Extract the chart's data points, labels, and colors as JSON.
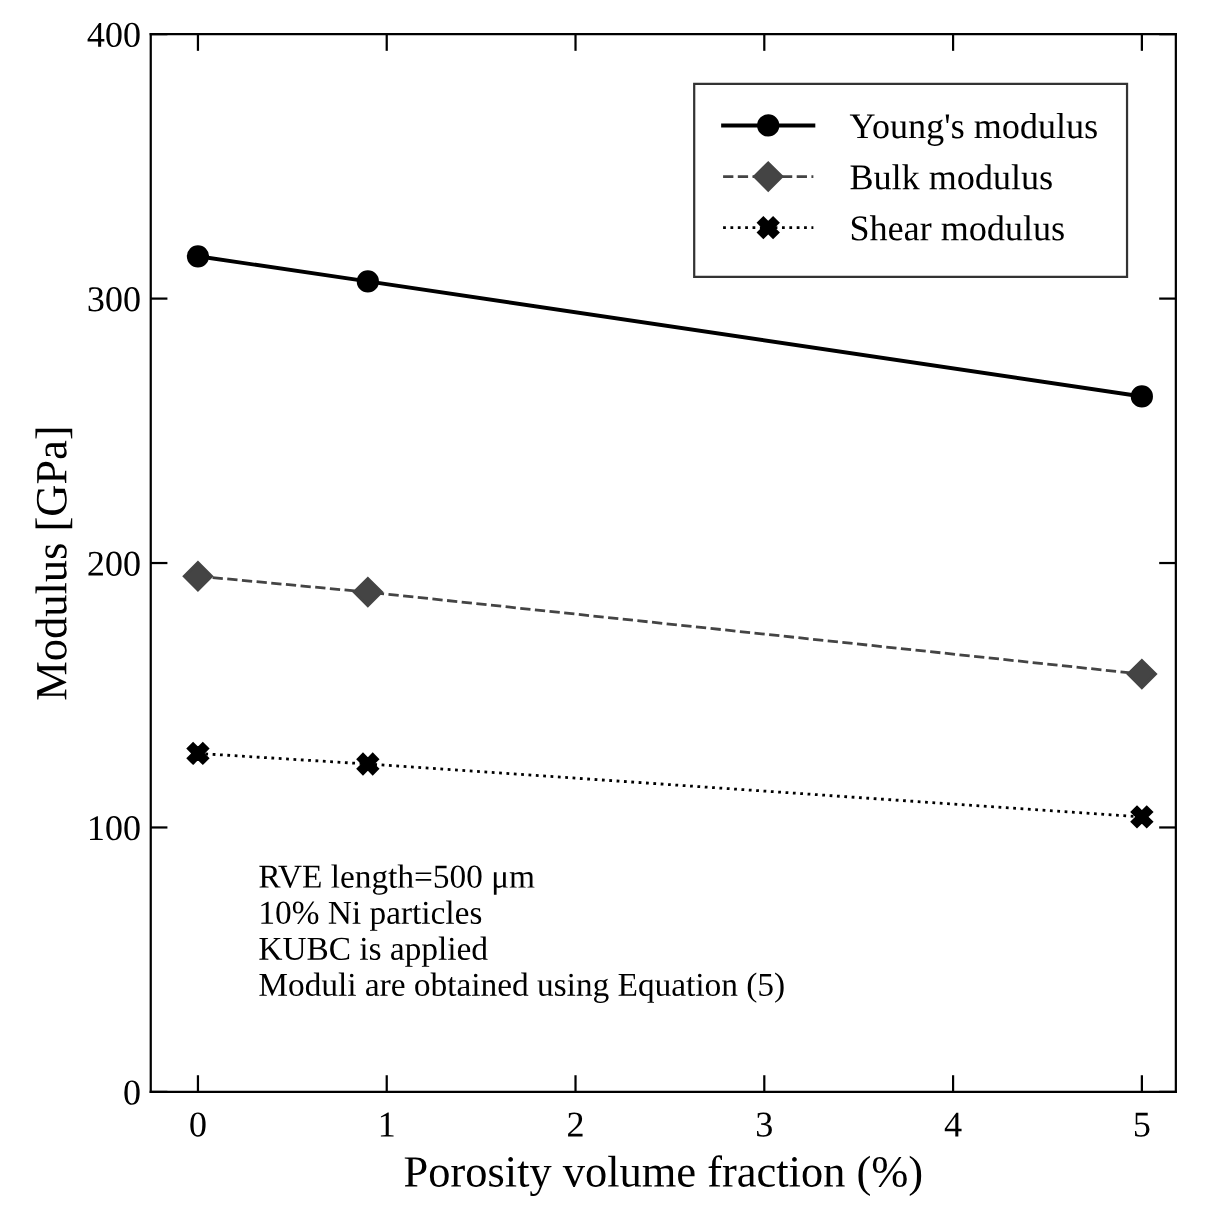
{
  "chart_data": {
    "type": "line",
    "xlabel": "Porosity volume fraction (%)",
    "ylabel": "Modulus [GPa]",
    "x": [
      0,
      0.9,
      5
    ],
    "series": [
      {
        "name": "Young's modulus",
        "color": "#000000",
        "values": [
          316,
          306.5,
          263
        ],
        "marker": "circle",
        "line_style": "solid"
      },
      {
        "name": "Bulk modulus",
        "color": "#444444",
        "values": [
          195,
          189,
          158
        ],
        "marker": "diamond",
        "line_style": "dashed"
      },
      {
        "name": "Shear modulus",
        "color": "#000000",
        "values": [
          128,
          124,
          104
        ],
        "marker": "cross",
        "line_style": "dotted"
      }
    ],
    "xlim": [
      -0.25,
      5.18
    ],
    "ylim": [
      0,
      400
    ],
    "xticks": [
      0,
      1,
      2,
      3,
      4,
      5
    ],
    "yticks": [
      0,
      100,
      200,
      300,
      400
    ],
    "grid": false,
    "legend": "top right",
    "annotations": [
      "RVE length=500 μm",
      "10% Ni particles",
      "KUBC is applied",
      "Moduli are obtained using Equation (5)"
    ]
  }
}
